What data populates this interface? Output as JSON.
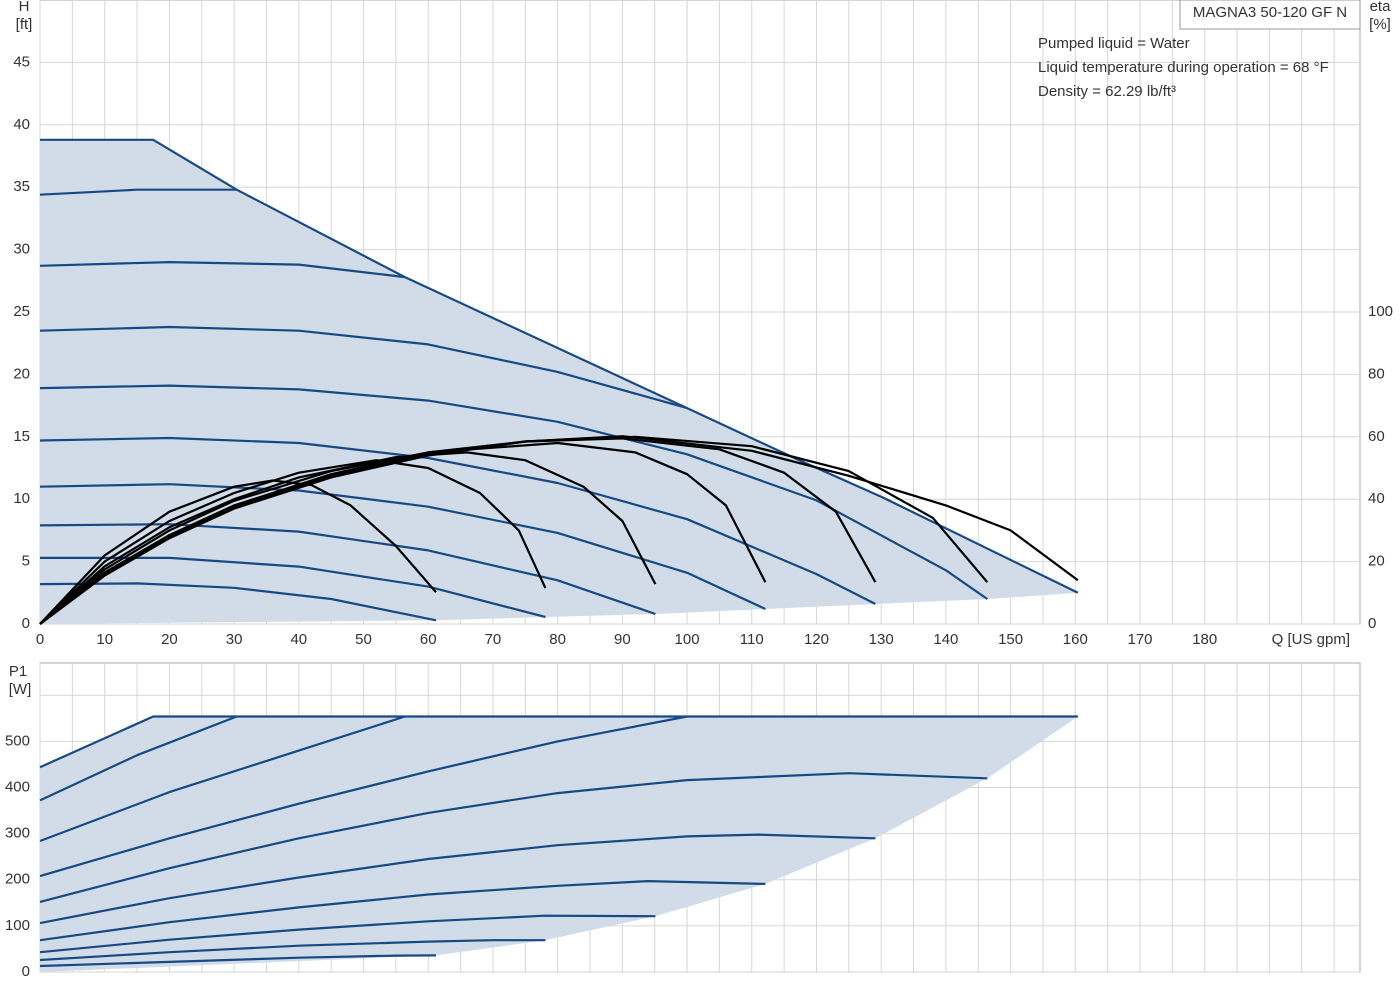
{
  "chart_data": [
    {
      "type": "line",
      "title": "MAGNA3 50-120 GF N",
      "annotations": [
        "Pumped liquid = Water",
        "Liquid temperature during operation = 68 °F",
        "Density = 62.29 lb/ft³"
      ],
      "ylabel": "H",
      "yunit": "[ft]",
      "y2label": "eta",
      "y2unit": "[%]",
      "xlabel": "Q [US gpm]",
      "xlim": [
        0,
        204
      ],
      "ylim": [
        0,
        50
      ],
      "y2lim": [
        0,
        200
      ],
      "xticks": [
        0,
        10,
        20,
        30,
        40,
        50,
        60,
        70,
        80,
        90,
        100,
        110,
        120,
        130,
        140,
        150,
        160,
        170,
        180
      ],
      "minor_xticks": [
        5,
        15,
        25,
        35,
        45,
        55,
        65,
        75,
        85,
        95,
        105,
        115,
        125,
        135,
        145,
        155,
        165,
        175,
        185,
        190,
        195,
        200
      ],
      "yticks": [
        0,
        5,
        10,
        15,
        20,
        25,
        30,
        35,
        40,
        45
      ],
      "y2ticks": [
        0,
        20,
        40,
        60,
        80,
        100
      ],
      "grid": true,
      "shaded": true,
      "fill_color": "#d1dce8",
      "series": [
        {
          "color": "#174a84",
          "x": [
            0,
            17.5,
            30.4,
            56.4,
            100,
            117,
            130,
            160.4
          ],
          "values": [
            38.8,
            38.8,
            34.8,
            27.8,
            17.3,
            13.2,
            10.2,
            2.5
          ]
        },
        {
          "color": "#174a84",
          "x": [
            0,
            15,
            30.4
          ],
          "values": [
            34.4,
            34.8,
            34.8
          ]
        },
        {
          "color": "#174a84",
          "x": [
            0,
            20,
            40,
            56.4
          ],
          "values": [
            28.7,
            29.0,
            28.8,
            27.8
          ]
        },
        {
          "color": "#174a84",
          "x": [
            0,
            20,
            40,
            60,
            80,
            100
          ],
          "values": [
            23.5,
            23.8,
            23.5,
            22.4,
            20.2,
            17.3
          ]
        },
        {
          "color": "#174a84",
          "x": [
            0,
            20,
            40,
            60,
            80,
            100,
            120,
            140,
            146.4
          ],
          "values": [
            18.9,
            19.1,
            18.8,
            17.9,
            16.2,
            13.6,
            9.9,
            4.3,
            2.0
          ]
        },
        {
          "color": "#174a84",
          "x": [
            0,
            20,
            40,
            60,
            80,
            100,
            120,
            129.1
          ],
          "values": [
            14.7,
            14.9,
            14.5,
            13.3,
            11.3,
            8.4,
            4.0,
            1.6
          ]
        },
        {
          "color": "#174a84",
          "x": [
            0,
            20,
            40,
            60,
            80,
            100,
            112.1
          ],
          "values": [
            11.0,
            11.2,
            10.7,
            9.4,
            7.3,
            4.1,
            1.2
          ]
        },
        {
          "color": "#174a84",
          "x": [
            0,
            20,
            40,
            60,
            80,
            95.1
          ],
          "values": [
            7.9,
            8.0,
            7.4,
            5.9,
            3.5,
            0.8
          ]
        },
        {
          "color": "#174a84",
          "x": [
            0,
            20,
            40,
            60,
            78.1
          ],
          "values": [
            5.3,
            5.3,
            4.6,
            3.0,
            0.56
          ]
        },
        {
          "color": "#174a84",
          "x": [
            0,
            15,
            30,
            45,
            61.2
          ],
          "values": [
            3.2,
            3.25,
            2.9,
            2.0,
            0.3
          ]
        },
        {
          "color": "#000000",
          "axis": "y2",
          "x": [
            0,
            10,
            20,
            30,
            36,
            42,
            48,
            55,
            61.2
          ],
          "values": [
            0,
            22,
            36,
            44,
            46,
            44.5,
            38,
            25,
            10.2
          ]
        },
        {
          "color": "#000000",
          "axis": "y2",
          "x": [
            0,
            10,
            20,
            30,
            40,
            52,
            60,
            68,
            74,
            78.1
          ],
          "values": [
            0,
            20,
            33,
            42,
            48.5,
            52.5,
            50,
            42,
            30,
            11.5
          ]
        },
        {
          "color": "#000000",
          "axis": "y2",
          "x": [
            0,
            10,
            20,
            30,
            40,
            55,
            66,
            75,
            84,
            90,
            95.1
          ],
          "values": [
            0,
            18.5,
            31,
            40,
            47,
            53.5,
            55,
            52.5,
            44,
            33,
            12.8
          ]
        },
        {
          "color": "#000000",
          "axis": "y2",
          "x": [
            0,
            10,
            20,
            30,
            45,
            60,
            80,
            92,
            100,
            106,
            112.1
          ],
          "values": [
            0,
            17.5,
            30,
            39.5,
            49,
            55,
            58,
            55,
            48,
            38,
            13.4
          ]
        },
        {
          "color": "#000000",
          "axis": "y2",
          "x": [
            0,
            10,
            20,
            30,
            45,
            60,
            75,
            90,
            105,
            115,
            123,
            129.1
          ],
          "values": [
            0,
            16.5,
            28.5,
            38,
            48,
            55,
            58.5,
            59.5,
            56,
            48.5,
            36,
            13.4
          ]
        },
        {
          "color": "#000000",
          "axis": "y2",
          "x": [
            0,
            10,
            20,
            30,
            45,
            60,
            75,
            92,
            110,
            125,
            138,
            146.4
          ],
          "values": [
            0,
            16,
            28,
            37.5,
            47.5,
            54.5,
            58.5,
            60,
            57,
            49,
            34,
            13.4
          ]
        },
        {
          "color": "#000000",
          "axis": "y2",
          "x": [
            0,
            10,
            20,
            30,
            45,
            60,
            75,
            90,
            110,
            125,
            140,
            150,
            160.4
          ],
          "values": [
            0,
            15.5,
            27.5,
            37,
            47,
            54,
            58.5,
            60.2,
            55.5,
            47.5,
            38,
            30,
            14
          ]
        }
      ]
    },
    {
      "type": "line",
      "ylabel": "P1",
      "yunit": "[W]",
      "xlim": [
        0,
        204
      ],
      "ylim": [
        0,
        670
      ],
      "yticks": [
        0,
        100,
        200,
        300,
        400,
        500
      ],
      "minor_yticks": [
        600
      ],
      "grid": true,
      "shaded": true,
      "fill_color": "#d1dce8",
      "series": [
        {
          "color": "#174a84",
          "x": [
            0,
            17.5,
            160.4
          ],
          "values": [
            444,
            554,
            554
          ]
        },
        {
          "color": "#174a84",
          "x": [
            0,
            15,
            30.4
          ],
          "values": [
            372,
            470,
            554
          ]
        },
        {
          "color": "#174a84",
          "x": [
            0,
            20,
            40,
            56.4
          ],
          "values": [
            284,
            390,
            480,
            554
          ]
        },
        {
          "color": "#174a84",
          "x": [
            0,
            20,
            40,
            60,
            80,
            100
          ],
          "values": [
            208,
            290,
            365,
            435,
            500,
            554
          ]
        },
        {
          "color": "#174a84",
          "x": [
            0,
            20,
            40,
            60,
            80,
            100,
            125,
            146.4
          ],
          "values": [
            152,
            225,
            290,
            345,
            388,
            416,
            431,
            420
          ]
        },
        {
          "color": "#174a84",
          "x": [
            0,
            20,
            40,
            60,
            80,
            100,
            111,
            129.1
          ],
          "values": [
            106,
            160,
            205,
            245,
            275,
            294,
            298,
            290
          ]
        },
        {
          "color": "#174a84",
          "x": [
            0,
            20,
            40,
            60,
            80,
            94,
            112.1
          ],
          "values": [
            69,
            108,
            140,
            168,
            187,
            197,
            191
          ]
        },
        {
          "color": "#174a84",
          "x": [
            0,
            20,
            40,
            60,
            78,
            95.1
          ],
          "values": [
            43,
            70,
            92,
            110,
            122,
            121
          ]
        },
        {
          "color": "#174a84",
          "x": [
            0,
            20,
            40,
            60,
            70,
            78.1
          ],
          "values": [
            26,
            43,
            57,
            66,
            69,
            69
          ]
        },
        {
          "color": "#174a84",
          "x": [
            0,
            20,
            40,
            55,
            61.2
          ],
          "values": [
            13,
            22,
            31,
            35.5,
            36
          ]
        }
      ]
    }
  ]
}
